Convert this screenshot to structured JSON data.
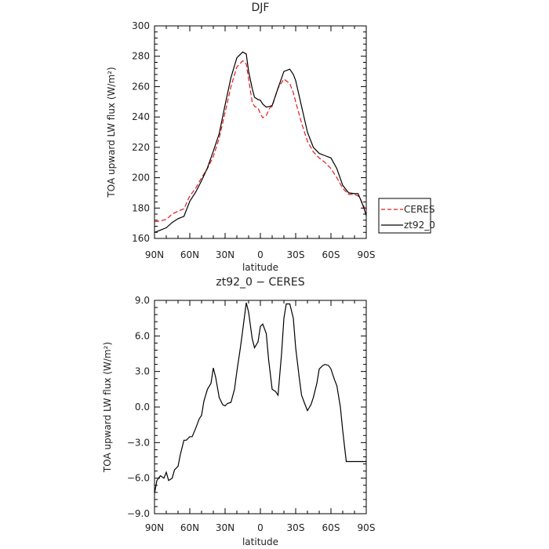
{
  "chart_data": [
    {
      "type": "line",
      "title": "DJF",
      "xlabel": "latitude",
      "ylabel": "TOA upward LW flux (W/m²)",
      "xlim": [
        90,
        -90
      ],
      "ylim": [
        160,
        300
      ],
      "x_ticks": [
        90,
        60,
        30,
        0,
        -30,
        -60,
        -90
      ],
      "x_tick_labels": [
        "90N",
        "60N",
        "30N",
        "0",
        "30S",
        "60S",
        "90S"
      ],
      "y_ticks": [
        160,
        180,
        200,
        220,
        240,
        260,
        280,
        300
      ],
      "y_tick_labels": [
        "160",
        "180",
        "200",
        "220",
        "240",
        "260",
        "280",
        "300"
      ],
      "grid": false,
      "legend": {
        "placement": "right",
        "entries": [
          "CERES",
          "zt92_0"
        ]
      },
      "series": [
        {
          "name": "CERES",
          "color": "#e41a1c",
          "dash": "dashed",
          "x": [
            90,
            85,
            80,
            75,
            70,
            65,
            60,
            55,
            50,
            45,
            40,
            35,
            30,
            25,
            20,
            15,
            12,
            10,
            7,
            5,
            2,
            0,
            -2,
            -5,
            -8,
            -10,
            -15,
            -20,
            -25,
            -28,
            -30,
            -35,
            -40,
            -45,
            -50,
            -55,
            -60,
            -65,
            -70,
            -75,
            -80,
            -83,
            -85,
            -88,
            -90
          ],
          "y": [
            171,
            171.5,
            172.5,
            176,
            178,
            179.5,
            188,
            193,
            200,
            206,
            214,
            226,
            243,
            260,
            273,
            277,
            275,
            265,
            250,
            247,
            246,
            242,
            239.5,
            241,
            246,
            247,
            259,
            265,
            262,
            256,
            250,
            236,
            224,
            217,
            213,
            210,
            206,
            200,
            193,
            189,
            189,
            188,
            186,
            181,
            179
          ]
        },
        {
          "name": "zt92_0",
          "color": "#000000",
          "dash": "solid",
          "x": [
            90,
            85,
            80,
            75,
            70,
            65,
            60,
            55,
            50,
            45,
            40,
            35,
            30,
            25,
            20,
            15,
            12,
            10,
            7,
            5,
            2,
            0,
            -2,
            -5,
            -8,
            -10,
            -15,
            -20,
            -25,
            -28,
            -30,
            -35,
            -40,
            -45,
            -50,
            -55,
            -60,
            -65,
            -70,
            -75,
            -80,
            -83,
            -85,
            -88,
            -90
          ],
          "y": [
            164,
            165.5,
            167,
            170.5,
            173,
            174.5,
            184.5,
            190.5,
            198,
            206.5,
            217.5,
            229,
            248,
            266,
            279,
            282.8,
            281.5,
            270,
            259,
            253,
            251.5,
            251,
            248.5,
            246.5,
            247,
            247.5,
            259,
            270,
            271.5,
            268,
            264,
            247,
            230,
            220,
            216,
            214.5,
            213,
            206,
            195,
            190,
            189.5,
            189.5,
            186,
            180,
            175
          ]
        }
      ]
    },
    {
      "type": "line",
      "title": "zt92_0 − CERES",
      "xlabel": "latitude",
      "ylabel": "TOA upward LW flux (W/m²)",
      "xlim": [
        90,
        -90
      ],
      "ylim": [
        -9,
        9
      ],
      "x_ticks": [
        90,
        60,
        30,
        0,
        -30,
        -60,
        -90
      ],
      "x_tick_labels": [
        "90N",
        "60N",
        "30N",
        "0",
        "30S",
        "60S",
        "90S"
      ],
      "y_ticks": [
        -9,
        -6,
        -3,
        0,
        3,
        6,
        9
      ],
      "y_tick_labels": [
        "−9.0",
        "−6.0",
        "−3.0",
        "0.0",
        "3.0",
        "6.0",
        "9.0"
      ],
      "grid": false,
      "series": [
        {
          "color": "#000000",
          "dash": "solid",
          "x": [
            90,
            88,
            85,
            82,
            80,
            78,
            75,
            73,
            70,
            68,
            65,
            63,
            60,
            58,
            55,
            52,
            50,
            48,
            45,
            42,
            40,
            38,
            35,
            32,
            30,
            28,
            25,
            22,
            20,
            17,
            15,
            12,
            10,
            7,
            5,
            2,
            0,
            -2,
            -5,
            -7,
            -10,
            -13,
            -15,
            -18,
            -20,
            -22,
            -25,
            -28,
            -30,
            -33,
            -35,
            -38,
            -40,
            -43,
            -45,
            -48,
            -50,
            -53,
            -55,
            -58,
            -60,
            -63,
            -65,
            -68,
            -70,
            -73,
            -75,
            -78,
            -80,
            -82,
            -85,
            -88,
            -90
          ],
          "y": [
            -7.3,
            -6.2,
            -5.8,
            -6.0,
            -5.5,
            -6.2,
            -6.0,
            -5.3,
            -5.0,
            -4.0,
            -2.8,
            -2.8,
            -2.5,
            -2.5,
            -1.8,
            -1.0,
            -0.7,
            0.5,
            1.5,
            2.0,
            3.3,
            2.5,
            0.8,
            0.2,
            0.1,
            0.3,
            0.4,
            1.5,
            3.0,
            5.0,
            6.5,
            8.8,
            8.0,
            5.8,
            5.0,
            5.5,
            6.8,
            7.0,
            6.2,
            4.0,
            1.5,
            1.3,
            1.0,
            4.5,
            7.5,
            8.7,
            8.7,
            7.5,
            5.0,
            2.5,
            1.0,
            0.2,
            -0.3,
            0.2,
            0.8,
            2.0,
            3.2,
            3.5,
            3.6,
            3.5,
            3.2,
            2.3,
            1.8,
            0.0,
            -2.0,
            -4.6,
            -4.6,
            -4.6,
            -4.6,
            -4.6,
            -4.6,
            -4.6,
            -4.6
          ]
        }
      ]
    }
  ]
}
